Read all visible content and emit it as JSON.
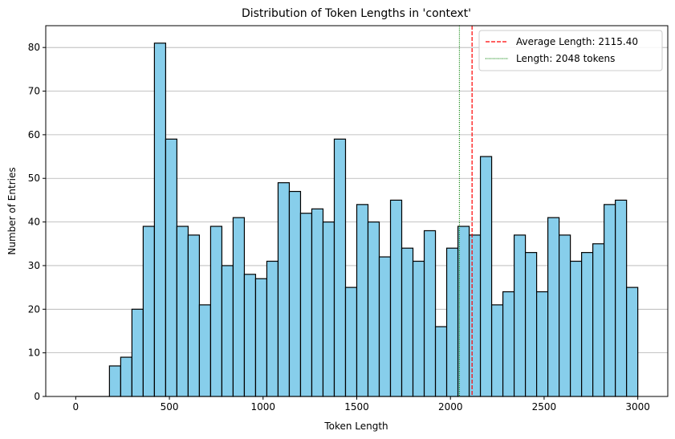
{
  "chart_data": {
    "type": "bar",
    "title": "Distribution of Token Lengths in 'context'",
    "xlabel": "Token Length",
    "ylabel": "Number of Entries",
    "xlim": [
      -160,
      3160
    ],
    "ylim": [
      0,
      85
    ],
    "xticks": [
      0,
      500,
      1000,
      1500,
      2000,
      2500,
      3000
    ],
    "yticks": [
      0,
      10,
      20,
      30,
      40,
      50,
      60,
      70,
      80
    ],
    "grid": "y-axis",
    "bins": {
      "start": 0,
      "width": 60,
      "count": 50
    },
    "values": [
      0,
      0,
      0,
      7,
      9,
      20,
      39,
      81,
      59,
      39,
      37,
      21,
      39,
      30,
      41,
      28,
      27,
      31,
      49,
      47,
      42,
      43,
      40,
      59,
      25,
      44,
      40,
      32,
      45,
      34,
      31,
      38,
      16,
      34,
      39,
      37,
      55,
      21,
      24,
      37,
      33,
      24,
      41,
      37,
      31,
      33,
      35,
      44,
      45,
      25
    ],
    "bar_color": "#87CEEB",
    "edge_color": "#000000",
    "vlines": [
      {
        "x": 2115.4,
        "color": "#ff0000",
        "style": "dashed",
        "label": "Average Length: 2115.40"
      },
      {
        "x": 2048,
        "color": "#008000",
        "style": "dotted",
        "label": "Length: 2048 tokens"
      }
    ],
    "legend": "top-right"
  }
}
